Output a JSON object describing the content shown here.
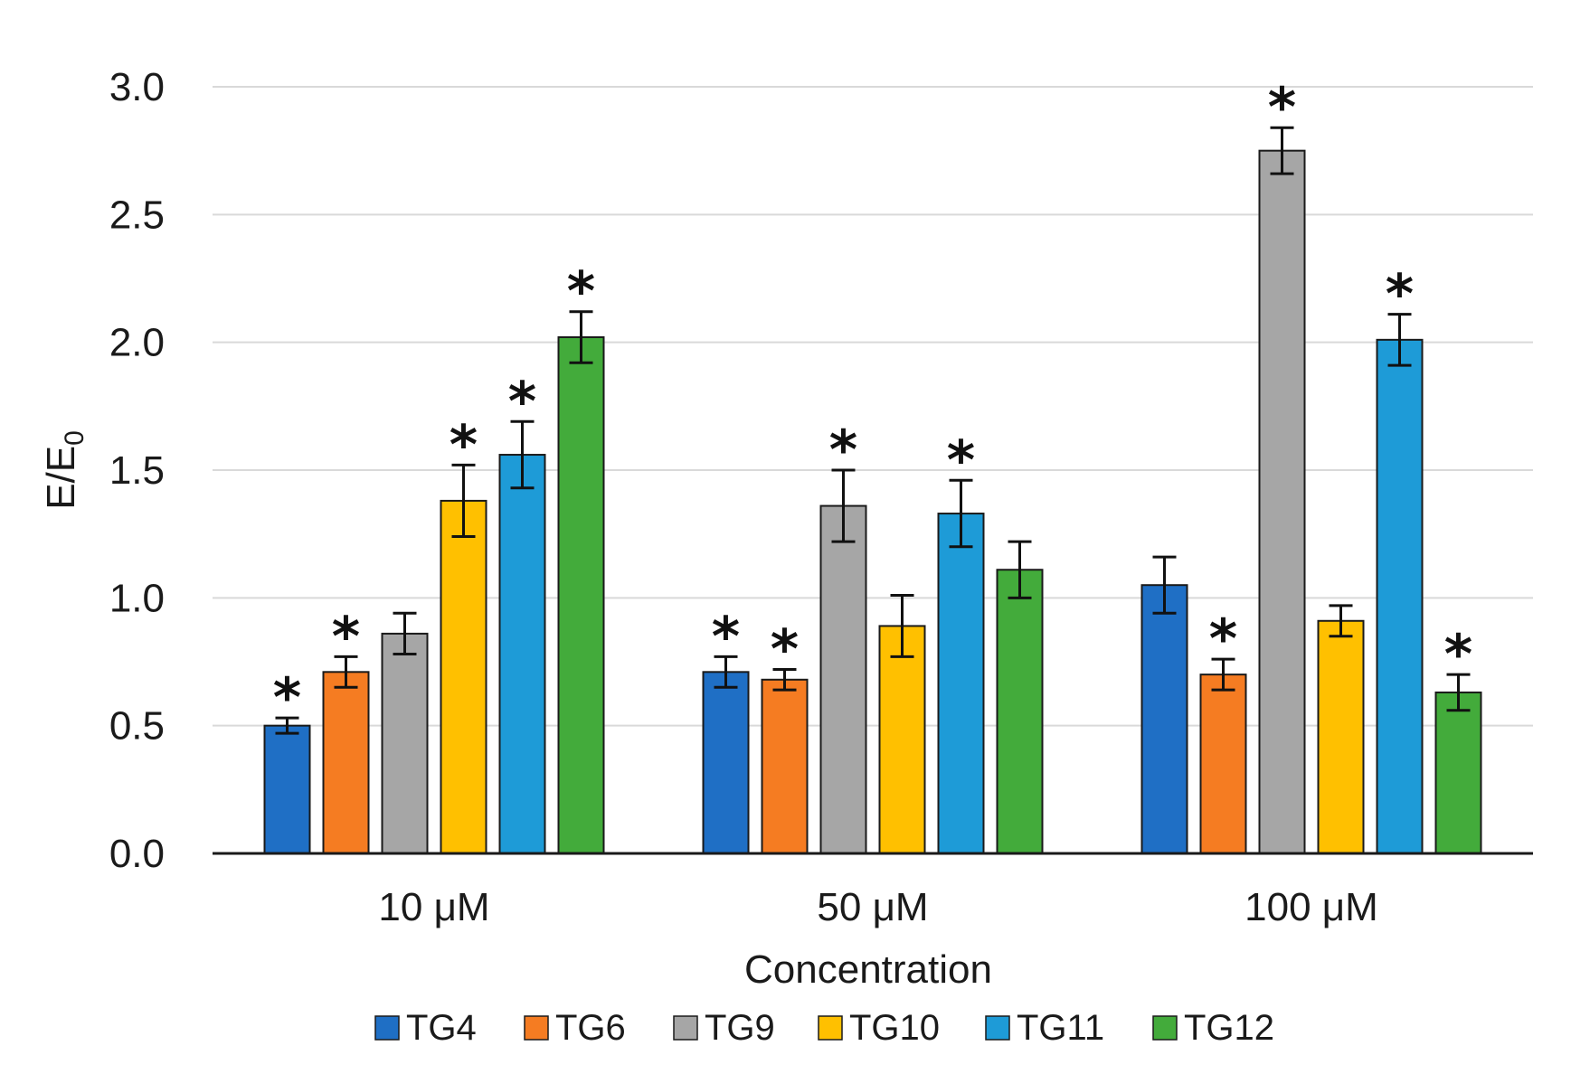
{
  "chart_data": {
    "type": "bar",
    "title": "",
    "xlabel": "Concentration",
    "ylabel_main": "E/E",
    "ylabel_sub": "0",
    "ylim": [
      0,
      3.0
    ],
    "yticks": [
      "0.0",
      "0.5",
      "1.0",
      "1.5",
      "2.0",
      "2.5",
      "3.0"
    ],
    "grid": true,
    "legend_position": "bottom",
    "significance_marker": "*",
    "categories": [
      "10 μM",
      "50 μM",
      "100 μM"
    ],
    "series": [
      {
        "name": "TG4",
        "color": "#1f6fc5",
        "values": [
          0.5,
          0.71,
          1.05
        ],
        "errors": [
          0.03,
          0.06,
          0.11
        ],
        "significant": [
          true,
          true,
          false
        ]
      },
      {
        "name": "TG6",
        "color": "#f57c22",
        "values": [
          0.71,
          0.68,
          0.7
        ],
        "errors": [
          0.06,
          0.04,
          0.06
        ],
        "significant": [
          true,
          true,
          true
        ]
      },
      {
        "name": "TG9",
        "color": "#a6a6a6",
        "values": [
          0.86,
          1.36,
          2.75
        ],
        "errors": [
          0.08,
          0.14,
          0.09
        ],
        "significant": [
          false,
          true,
          true
        ]
      },
      {
        "name": "TG10",
        "color": "#ffc000",
        "values": [
          1.38,
          0.89,
          0.91
        ],
        "errors": [
          0.14,
          0.12,
          0.06
        ],
        "significant": [
          true,
          false,
          false
        ]
      },
      {
        "name": "TG11",
        "color": "#1e9bd7",
        "values": [
          1.56,
          1.33,
          2.01
        ],
        "errors": [
          0.13,
          0.13,
          0.1
        ],
        "significant": [
          true,
          true,
          true
        ]
      },
      {
        "name": "TG12",
        "color": "#43ab3b",
        "values": [
          2.02,
          1.11,
          0.63
        ],
        "errors": [
          0.1,
          0.11,
          0.07
        ],
        "significant": [
          true,
          false,
          true
        ]
      }
    ]
  }
}
